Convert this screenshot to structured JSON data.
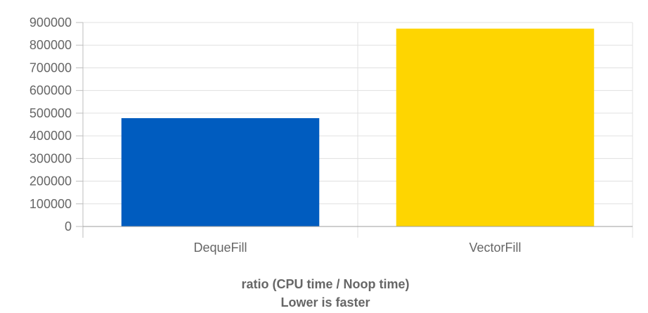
{
  "chart_data": {
    "type": "bar",
    "categories": [
      "DequeFill",
      "VectorFill"
    ],
    "values": [
      478000,
      873000
    ],
    "colors": [
      "#005cbf",
      "#fed501"
    ],
    "title": "",
    "xlabel": [
      "ratio (CPU time / Noop time)",
      "Lower is faster"
    ],
    "ylabel": "",
    "ylim": [
      0,
      900000
    ],
    "yticks": [
      0,
      100000,
      200000,
      300000,
      400000,
      500000,
      600000,
      700000,
      800000,
      900000
    ],
    "grid": true,
    "legend": "none"
  }
}
